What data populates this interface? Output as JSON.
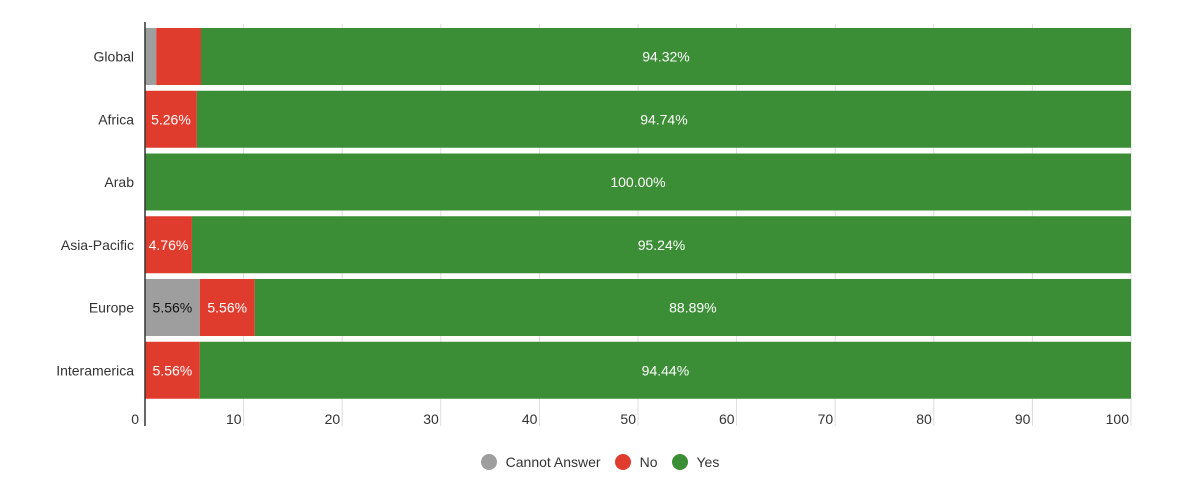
{
  "chart_data": {
    "type": "bar",
    "orientation": "horizontal",
    "stacked": true,
    "categories": [
      "Global",
      "Africa",
      "Arab",
      "Asia-Pacific",
      "Europe",
      "Interamerica"
    ],
    "series": [
      {
        "name": "Cannot Answer",
        "color": "#9e9e9e",
        "values": [
          1.14,
          0,
          0,
          0,
          5.56,
          0
        ],
        "labels": [
          "",
          "",
          "",
          "",
          "5.56%",
          ""
        ]
      },
      {
        "name": "No",
        "color": "#e03c2e",
        "values": [
          4.54,
          5.26,
          0,
          4.76,
          5.56,
          5.56
        ],
        "labels": [
          "",
          "5.26%",
          "",
          "4.76%",
          "5.56%",
          "5.56%"
        ]
      },
      {
        "name": "Yes",
        "color": "#3b8e36",
        "values": [
          94.32,
          94.74,
          100.0,
          95.24,
          88.89,
          94.44
        ],
        "labels": [
          "94.32%",
          "94.74%",
          "100.00%",
          "95.24%",
          "88.89%",
          "94.44%"
        ]
      }
    ],
    "xlim": [
      0,
      100
    ],
    "xticks": [
      "0",
      "10",
      "20",
      "30",
      "40",
      "50",
      "60",
      "70",
      "80",
      "90",
      "100"
    ],
    "grid": true,
    "legend_position": "bottom-center",
    "title": "",
    "xlabel": "",
    "ylabel": ""
  }
}
